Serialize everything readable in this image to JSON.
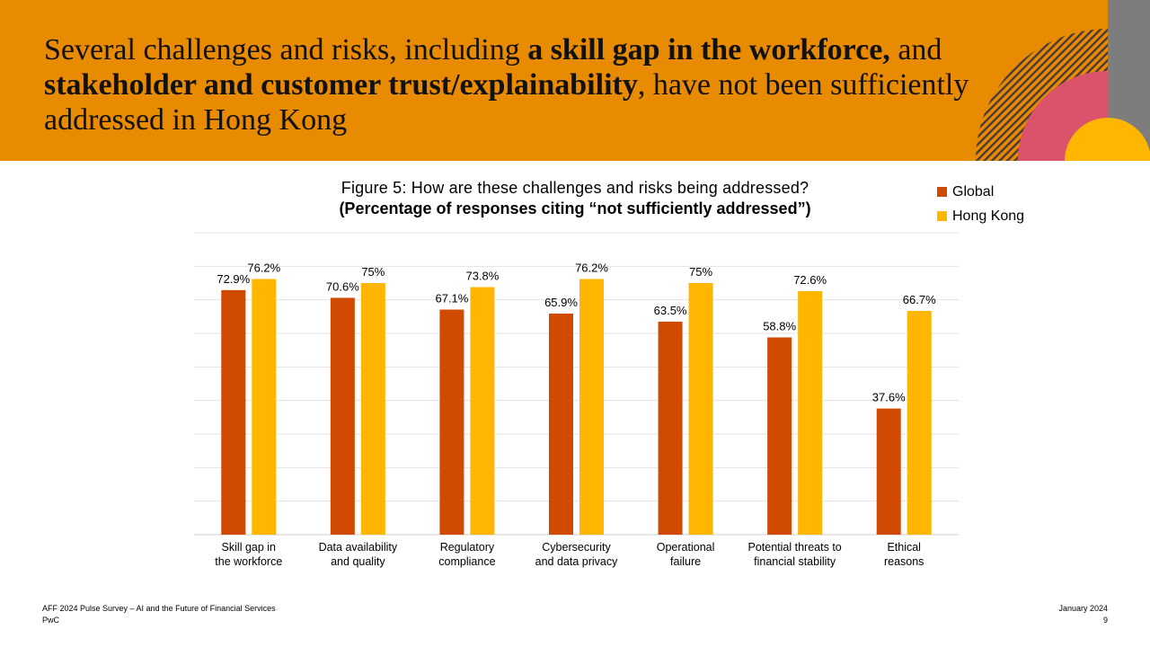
{
  "header": {
    "headline_part1": "Several challenges and risks, including ",
    "headline_bold1": "a skill gap in the workforce,",
    "headline_part2": " and ",
    "headline_bold2": "stakeholder and customer trust/explainability",
    "headline_part3": ", have not been sufficiently addressed in Hong Kong"
  },
  "colors": {
    "banner": "#E88B00",
    "global": "#D04A02",
    "hong_kong": "#FFB600",
    "deco_rose": "#DB536A",
    "deco_gray": "#7D7D7D",
    "deco_hatch": "#4A3A3A"
  },
  "chart_data": {
    "type": "bar",
    "title": "Figure 5:  How are these challenges and risks being addressed?",
    "subtitle": "(Percentage of responses citing “not sufficiently addressed”)",
    "categories": [
      "Skill gap in\nthe workforce",
      "Data availability\nand quality",
      "Regulatory\ncompliance",
      "Cybersecurity\nand data privacy",
      "Operational\nfailure",
      "Potential threats to\nfinancial stability",
      "Ethical\nreasons"
    ],
    "series": [
      {
        "name": "Global",
        "values": [
          72.9,
          70.6,
          67.1,
          65.9,
          63.5,
          58.8,
          37.6
        ],
        "labels": [
          "72.9%",
          "70.6%",
          "67.1%",
          "65.9%",
          "63.5%",
          "58.8%",
          "37.6%"
        ]
      },
      {
        "name": "Hong Kong",
        "values": [
          76.2,
          75,
          73.8,
          76.2,
          75,
          72.6,
          66.7
        ],
        "labels": [
          "76.2%",
          "75%",
          "73.8%",
          "76.2%",
          "75%",
          "72.6%",
          "66.7%"
        ]
      }
    ],
    "ylim": [
      0,
      90
    ],
    "grid": true,
    "legend": "top-right"
  },
  "footer": {
    "source": "AFF 2024 Pulse Survey – AI and the Future of Financial Services",
    "company": "PwC",
    "date": "January 2024",
    "page": "9"
  }
}
